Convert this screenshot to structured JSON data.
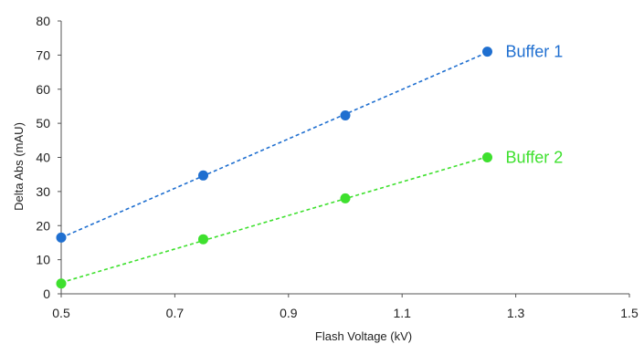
{
  "chart_data": {
    "type": "scatter",
    "title": "",
    "xlabel": "Flash Voltage (kV)",
    "ylabel": "Delta Abs (mAU)",
    "xlim": [
      0.5,
      1.5
    ],
    "ylim": [
      0,
      80
    ],
    "x_ticks": [
      "0.5",
      "0.7",
      "0.9",
      "1.1",
      "1.3",
      "1.5"
    ],
    "y_ticks": [
      "0",
      "10",
      "20",
      "30",
      "40",
      "50",
      "60",
      "70",
      "80"
    ],
    "grid": false,
    "legend": "inline labels at line ends",
    "trendlines": "dashed linear",
    "series": [
      {
        "name": "Buffer 1",
        "color": "#1f6fd0",
        "x": [
          0.5,
          0.75,
          1.0,
          1.25
        ],
        "y": [
          16.5,
          34.7,
          52.3,
          71.0
        ]
      },
      {
        "name": "Buffer 2",
        "color": "#3ee02e",
        "x": [
          0.5,
          0.75,
          1.0,
          1.25
        ],
        "y": [
          3.0,
          16.0,
          28.0,
          40.0
        ]
      }
    ]
  }
}
